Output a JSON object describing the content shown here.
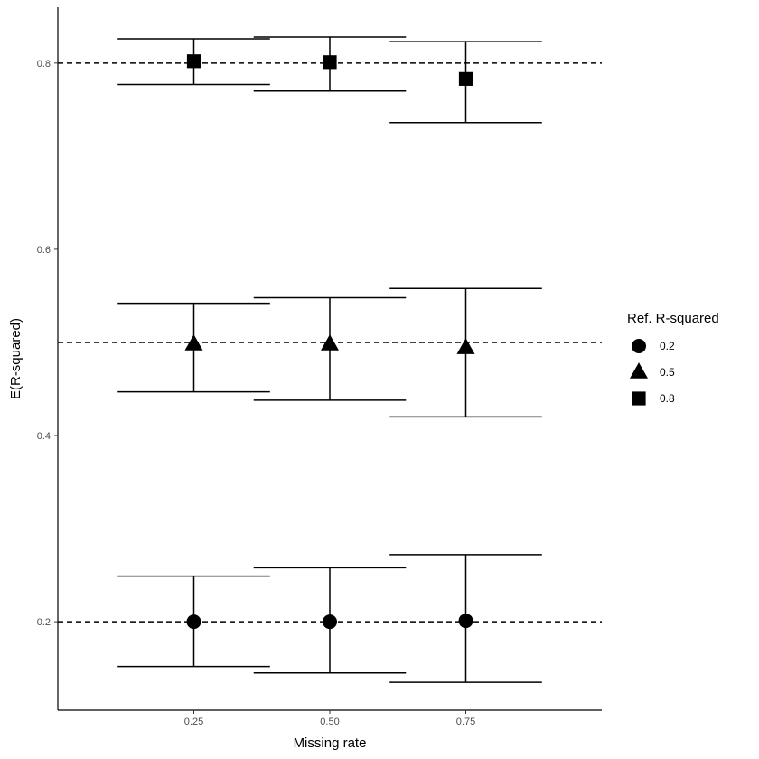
{
  "chart_data": {
    "type": "scatter",
    "title": "",
    "xlabel": "Missing rate",
    "ylabel": "E(R-squared)",
    "x_ticks": [
      "0.25",
      "0.50",
      "0.75"
    ],
    "y_ticks": [
      "0.2",
      "0.4",
      "0.6",
      "0.8"
    ],
    "xlim": [
      0.0,
      1.0
    ],
    "ylim": [
      0.105,
      0.86
    ],
    "grid": false,
    "reference_lines": [
      0.2,
      0.5,
      0.8
    ],
    "legend": {
      "title": "Ref. R-squared",
      "placement": "right",
      "entries": [
        {
          "label": "0.2",
          "shape": "circle"
        },
        {
          "label": "0.5",
          "shape": "triangle"
        },
        {
          "label": "0.8",
          "shape": "square"
        }
      ]
    },
    "errorbar_halfwidth": 0.14,
    "series": [
      {
        "name": "0.2",
        "shape": "circle",
        "points": [
          {
            "x": 0.25,
            "y": 0.2,
            "lower": 0.152,
            "upper": 0.249
          },
          {
            "x": 0.5,
            "y": 0.2,
            "lower": 0.145,
            "upper": 0.258
          },
          {
            "x": 0.75,
            "y": 0.201,
            "lower": 0.135,
            "upper": 0.272
          }
        ]
      },
      {
        "name": "0.5",
        "shape": "triangle",
        "points": [
          {
            "x": 0.25,
            "y": 0.498,
            "lower": 0.447,
            "upper": 0.542
          },
          {
            "x": 0.5,
            "y": 0.498,
            "lower": 0.438,
            "upper": 0.548
          },
          {
            "x": 0.75,
            "y": 0.494,
            "lower": 0.42,
            "upper": 0.558
          }
        ]
      },
      {
        "name": "0.8",
        "shape": "square",
        "points": [
          {
            "x": 0.25,
            "y": 0.802,
            "lower": 0.777,
            "upper": 0.826
          },
          {
            "x": 0.5,
            "y": 0.801,
            "lower": 0.77,
            "upper": 0.828
          },
          {
            "x": 0.75,
            "y": 0.783,
            "lower": 0.736,
            "upper": 0.823
          }
        ]
      }
    ],
    "colors": {
      "marks": "#000000",
      "ticks": "#4d4d4d",
      "background": "#ffffff"
    }
  }
}
